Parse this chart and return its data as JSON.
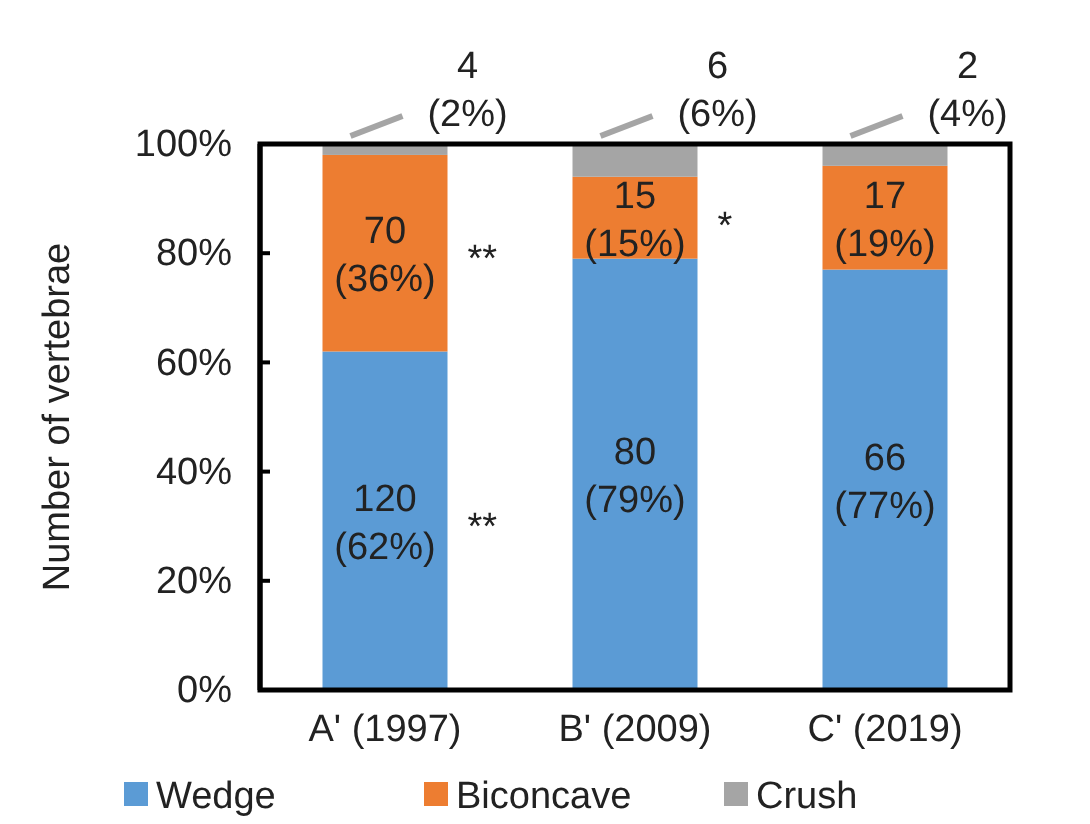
{
  "chart_data": {
    "type": "bar",
    "stacked": true,
    "ylabel": "Number of vertebrae",
    "categories": [
      "A' (1997)",
      "B' (2009)",
      "C' (2019)"
    ],
    "series": [
      {
        "name": "Wedge",
        "color": "#5b9bd5",
        "values": [
          62,
          79,
          77
        ],
        "value_labels": [
          "120\n(62%)",
          "80\n(79%)",
          "66\n(77%)"
        ]
      },
      {
        "name": "Biconcave",
        "color": "#ed7d31",
        "values": [
          36,
          15,
          19
        ],
        "value_labels": [
          "70\n(36%)",
          "15\n(15%)",
          "17\n(19%)"
        ]
      },
      {
        "name": "Crush",
        "color": "#a5a5a5",
        "values": [
          2,
          6,
          4
        ],
        "value_labels": [
          "4\n(2%)",
          "6\n(6%)",
          "2\n(4%)"
        ]
      }
    ],
    "ylim": [
      0,
      100
    ],
    "yticks": [
      {
        "value": 0,
        "label": "0%"
      },
      {
        "value": 20,
        "label": "20%"
      },
      {
        "value": 40,
        "label": "40%"
      },
      {
        "value": 60,
        "label": "60%"
      },
      {
        "value": 80,
        "label": "80%"
      },
      {
        "value": 100,
        "label": "100%"
      }
    ],
    "annotations": [
      "**",
      "**",
      "*"
    ],
    "legend": "bottom",
    "grid": false
  }
}
